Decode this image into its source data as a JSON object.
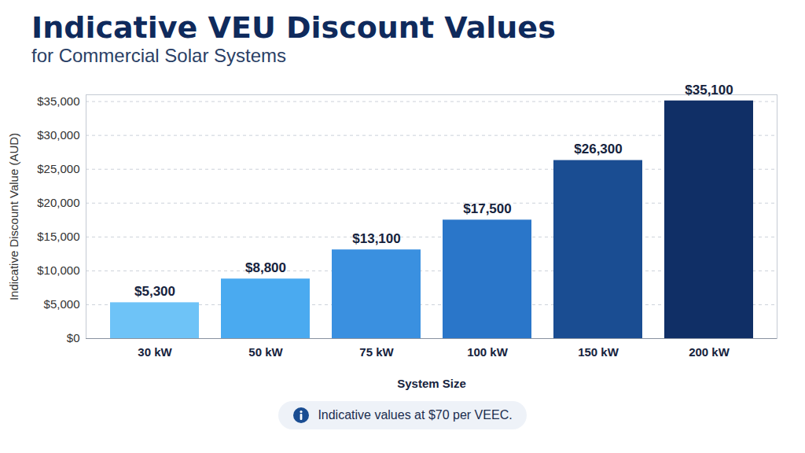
{
  "chart_data": {
    "type": "bar",
    "title": "Indicative VEU Discount Values",
    "subtitle": "for Commercial Solar Systems",
    "x_label": "System Size",
    "y_label": "Indicative Discount Value (AUD)",
    "categories": [
      "30 kW",
      "50 kW",
      "75 kW",
      "100 kW",
      "150 kW",
      "200 kW"
    ],
    "values": [
      5300,
      8800,
      13100,
      17500,
      26300,
      35100
    ],
    "value_labels": [
      "$5,300",
      "$8,800",
      "$13,100",
      "$17,500",
      "$26,300",
      "$35,100"
    ],
    "colors": [
      "#6ec3f7",
      "#4aaaf0",
      "#3a90e0",
      "#2a76c9",
      "#1a4d92",
      "#102f66"
    ],
    "ylim": [
      0,
      36000
    ],
    "yticks": [
      {
        "value": 0,
        "label": "$0"
      },
      {
        "value": 5000,
        "label": "$5,000"
      },
      {
        "value": 10000,
        "label": "$10,000"
      },
      {
        "value": 15000,
        "label": "$15,000"
      },
      {
        "value": 20000,
        "label": "$20,000"
      },
      {
        "value": 25000,
        "label": "$25,000"
      },
      {
        "value": 30000,
        "label": "$30,000"
      },
      {
        "value": 35000,
        "label": "$35,000"
      }
    ],
    "grid": true,
    "data_labels": true,
    "annotation": "Indicative values at $70 per VEEC."
  }
}
